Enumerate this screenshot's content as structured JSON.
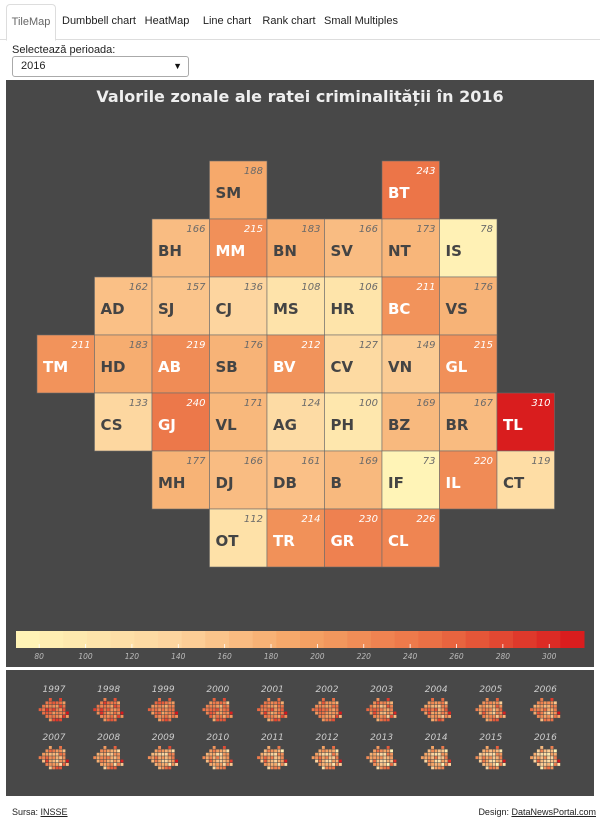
{
  "tabs": [
    "TileMap",
    "Dumbbell chart",
    "HeatMap",
    "Line chart",
    "Rank chart",
    "Small Multiples"
  ],
  "active_tab": "TileMap",
  "selector": {
    "label": "Selectează perioada:",
    "value": "2016"
  },
  "footer": {
    "source_label": "Sursa:",
    "source_link": "INSSE",
    "design_label": "Design:",
    "design_link": "DataNewsPortal.com"
  },
  "colors": {
    "panel_bg": "#484848",
    "scale_low": "#fff5b8",
    "scale_mid": "#f5a566",
    "scale_high": "#d7161b"
  },
  "chart_data": {
    "type": "tilemap",
    "title": "Valorile zonale ale ratei criminalității în 2016",
    "year": "2016",
    "tiles": [
      {
        "code": "SM",
        "value": 188,
        "row": 0,
        "col": 3
      },
      {
        "code": "BT",
        "value": 243,
        "row": 0,
        "col": 6
      },
      {
        "code": "BH",
        "value": 166,
        "row": 1,
        "col": 2
      },
      {
        "code": "MM",
        "value": 215,
        "row": 1,
        "col": 3
      },
      {
        "code": "BN",
        "value": 183,
        "row": 1,
        "col": 4
      },
      {
        "code": "SV",
        "value": 166,
        "row": 1,
        "col": 5
      },
      {
        "code": "NT",
        "value": 173,
        "row": 1,
        "col": 6
      },
      {
        "code": "IS",
        "value": 78,
        "row": 1,
        "col": 7
      },
      {
        "code": "AD",
        "value": 162,
        "row": 2,
        "col": 1
      },
      {
        "code": "SJ",
        "value": 157,
        "row": 2,
        "col": 2
      },
      {
        "code": "CJ",
        "value": 136,
        "row": 2,
        "col": 3
      },
      {
        "code": "MS",
        "value": 108,
        "row": 2,
        "col": 4
      },
      {
        "code": "HR",
        "value": 106,
        "row": 2,
        "col": 5
      },
      {
        "code": "BC",
        "value": 211,
        "row": 2,
        "col": 6
      },
      {
        "code": "VS",
        "value": 176,
        "row": 2,
        "col": 7
      },
      {
        "code": "TM",
        "value": 211,
        "row": 3,
        "col": 0
      },
      {
        "code": "HD",
        "value": 183,
        "row": 3,
        "col": 1
      },
      {
        "code": "AB",
        "value": 219,
        "row": 3,
        "col": 2
      },
      {
        "code": "SB",
        "value": 176,
        "row": 3,
        "col": 3
      },
      {
        "code": "BV",
        "value": 212,
        "row": 3,
        "col": 4
      },
      {
        "code": "CV",
        "value": 127,
        "row": 3,
        "col": 5
      },
      {
        "code": "VN",
        "value": 149,
        "row": 3,
        "col": 6
      },
      {
        "code": "GL",
        "value": 215,
        "row": 3,
        "col": 7
      },
      {
        "code": "CS",
        "value": 133,
        "row": 4,
        "col": 1
      },
      {
        "code": "GJ",
        "value": 240,
        "row": 4,
        "col": 2
      },
      {
        "code": "VL",
        "value": 171,
        "row": 4,
        "col": 3
      },
      {
        "code": "AG",
        "value": 124,
        "row": 4,
        "col": 4
      },
      {
        "code": "PH",
        "value": 100,
        "row": 4,
        "col": 5
      },
      {
        "code": "BZ",
        "value": 169,
        "row": 4,
        "col": 6
      },
      {
        "code": "BR",
        "value": 167,
        "row": 4,
        "col": 7
      },
      {
        "code": "TL",
        "value": 310,
        "row": 4,
        "col": 8
      },
      {
        "code": "MH",
        "value": 177,
        "row": 5,
        "col": 2
      },
      {
        "code": "DJ",
        "value": 166,
        "row": 5,
        "col": 3
      },
      {
        "code": "DB",
        "value": 161,
        "row": 5,
        "col": 4
      },
      {
        "code": "B",
        "value": 169,
        "row": 5,
        "col": 5
      },
      {
        "code": "IF",
        "value": 73,
        "row": 5,
        "col": 6
      },
      {
        "code": "IL",
        "value": 220,
        "row": 5,
        "col": 7
      },
      {
        "code": "CT",
        "value": 119,
        "row": 5,
        "col": 8
      },
      {
        "code": "OT",
        "value": 112,
        "row": 6,
        "col": 3
      },
      {
        "code": "TR",
        "value": 214,
        "row": 6,
        "col": 4
      },
      {
        "code": "GR",
        "value": 230,
        "row": 6,
        "col": 5
      },
      {
        "code": "CL",
        "value": 226,
        "row": 6,
        "col": 6
      }
    ],
    "legend": {
      "ticks": [
        80,
        100,
        120,
        140,
        160,
        180,
        200,
        220,
        240,
        260,
        280,
        300
      ],
      "domain": [
        70,
        315
      ]
    },
    "small_multiples_years": [
      "1997",
      "1998",
      "1999",
      "2000",
      "2001",
      "2002",
      "2003",
      "2004",
      "2005",
      "2006",
      "2007",
      "2008",
      "2009",
      "2010",
      "2011",
      "2012",
      "2013",
      "2014",
      "2015",
      "2016"
    ]
  }
}
